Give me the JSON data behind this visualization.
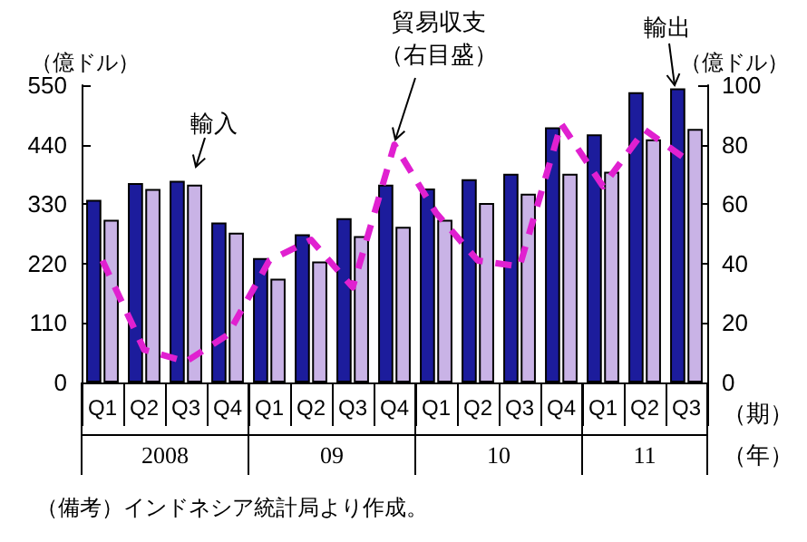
{
  "chart_data": {
    "type": "bar",
    "categories": [
      "Q1",
      "Q2",
      "Q3",
      "Q4",
      "Q1",
      "Q2",
      "Q3",
      "Q4",
      "Q1",
      "Q2",
      "Q3",
      "Q4",
      "Q1",
      "Q2",
      "Q3"
    ],
    "series": [
      {
        "name": "輸出",
        "color": "#1c1c9c",
        "values": [
          338,
          369,
          373,
          296,
          230,
          274,
          304,
          366,
          359,
          376,
          386,
          472,
          459,
          537,
          544
        ]
      },
      {
        "name": "輸入",
        "color": "#c9b3e6",
        "values": [
          301,
          358,
          366,
          277,
          192,
          224,
          271,
          288,
          301,
          332,
          349,
          386,
          390,
          450,
          469
        ]
      },
      {
        "name": "貿易収支（右目盛）",
        "type": "line",
        "axis": "y2",
        "color": "#e020d0",
        "line_style": "dashed",
        "marker": "none",
        "values": [
          41,
          11,
          7,
          16,
          41,
          48,
          32,
          80,
          57,
          41,
          39,
          87,
          66,
          85,
          75
        ]
      }
    ],
    "xlabel": "（期）",
    "ylabel": "（億ドル）",
    "y2label": "（億ドル）",
    "ylim": [
      0,
      550
    ],
    "yticks": [
      0,
      110,
      220,
      330,
      440,
      550
    ],
    "y2lim": [
      0,
      100
    ],
    "y2ticks": [
      0,
      20,
      40,
      60,
      80,
      100
    ],
    "grid": false,
    "legend": false,
    "annotations": [
      "2008",
      "09",
      "10",
      "11",
      "（年）",
      "（備考）インドネシア統計局より作成。"
    ]
  }
}
